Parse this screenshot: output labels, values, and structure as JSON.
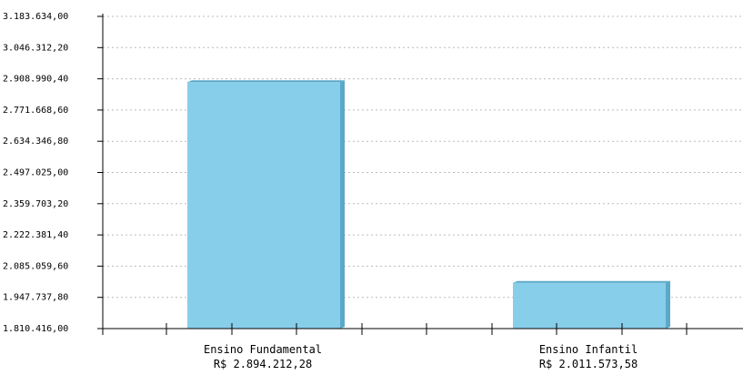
{
  "chart_data": {
    "type": "bar",
    "categories": [
      "Ensino Fundamental",
      "Ensino Infantil"
    ],
    "value_labels": [
      "R$ 2.894.212,28",
      "R$ 2.011.573,58"
    ],
    "values": [
      2894212.28,
      2011573.58
    ],
    "y_ticks": [
      "1.810.416,00",
      "1.947.737,80",
      "2.085.059,60",
      "2.222.381,40",
      "2.359.703,20",
      "2.497.025,00",
      "2.634.346,80",
      "2.771.668,60",
      "2.908.990,40",
      "3.046.312,20",
      "3.183.634,00"
    ],
    "ylim": [
      1810416.0,
      3183634.0
    ],
    "grid": true,
    "colors": {
      "bar_face": "#87ceeb",
      "bar_side": "#5ba8c8",
      "grid": "#bbbbbb",
      "axis": "#000000"
    }
  }
}
